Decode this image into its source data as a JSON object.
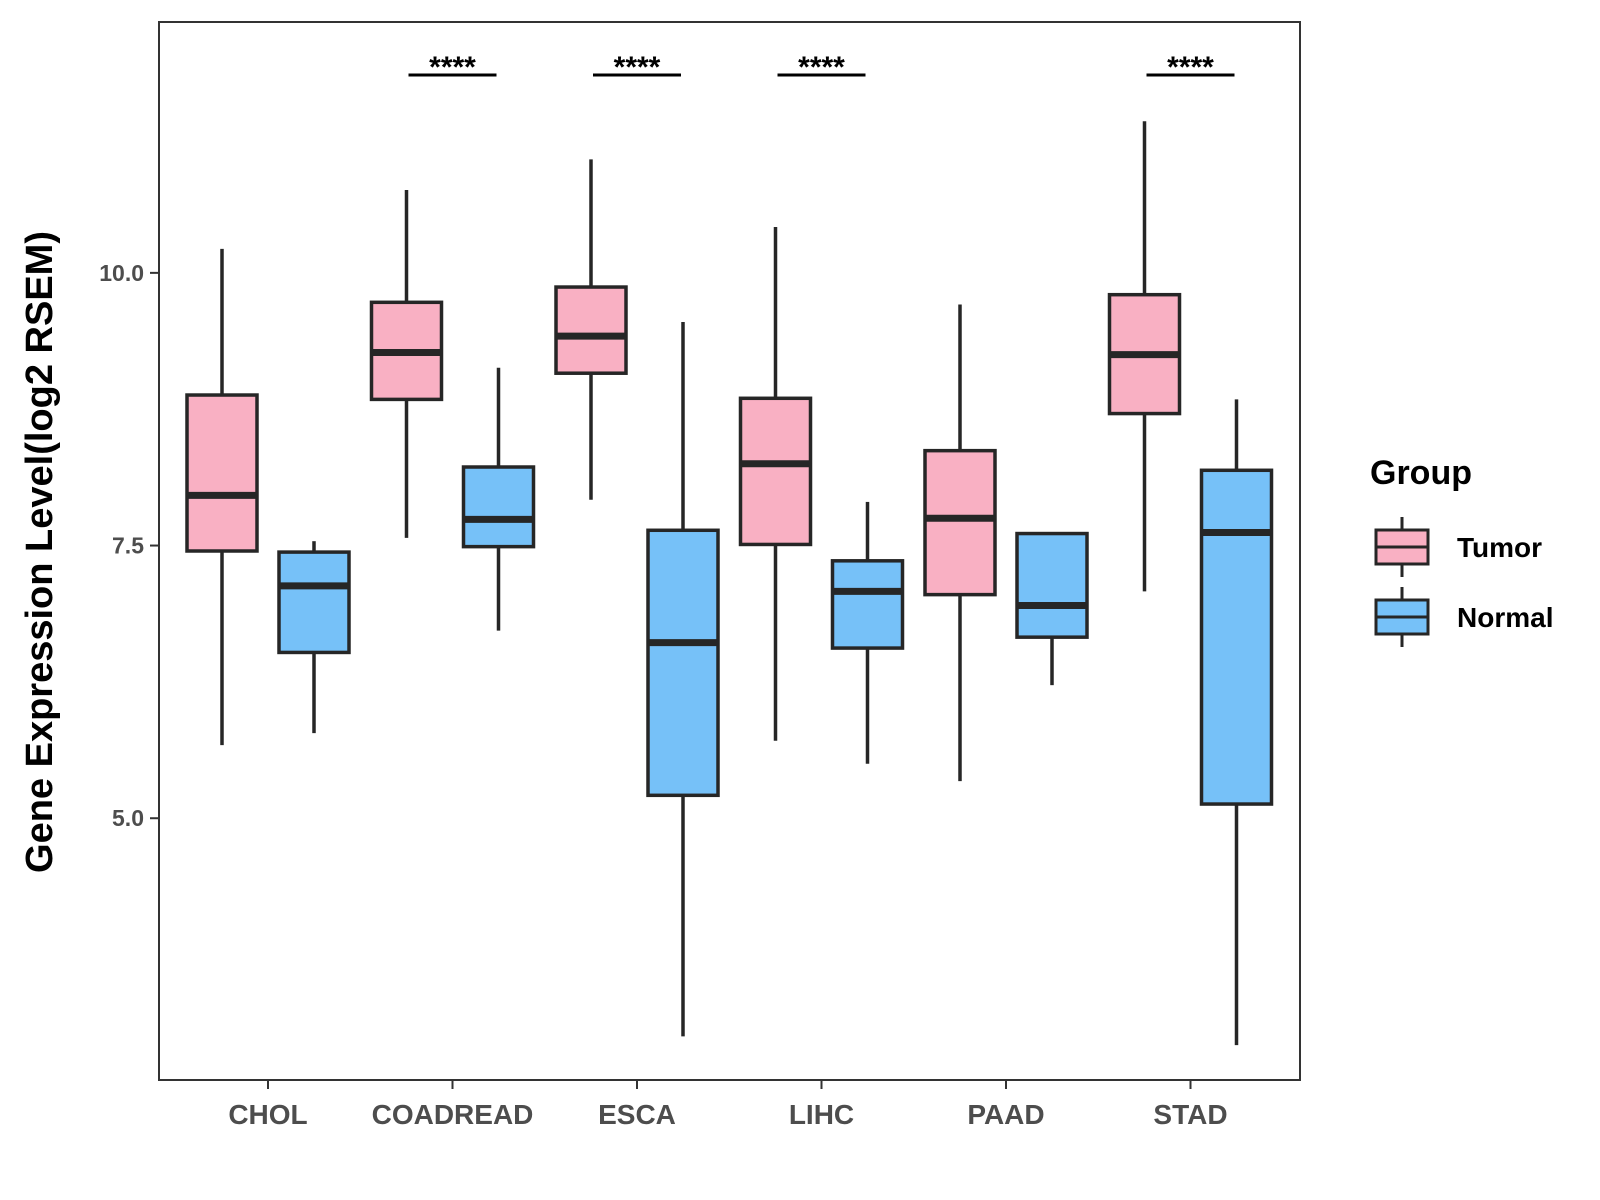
{
  "chart_data": {
    "type": "boxplot",
    "title": "",
    "xlabel": "",
    "ylabel": "Gene Expression Level(log2 RSEM)",
    "ylim": [
      2.6,
      12.3
    ],
    "yticks": [
      5.0,
      7.5,
      10.0
    ],
    "ytick_labels": [
      "5.0",
      "7.5",
      "10.0"
    ],
    "categories": [
      "CHOL",
      "COADREAD",
      "ESCA",
      "LIHC",
      "PAAD",
      "STAD"
    ],
    "series": [
      {
        "name": "Tumor",
        "color": "#F9B0C3",
        "boxes": [
          {
            "whisker_low": 5.67,
            "q1": 7.45,
            "median": 7.96,
            "q3": 8.88,
            "whisker_high": 10.22
          },
          {
            "whisker_low": 7.57,
            "q1": 8.84,
            "median": 9.27,
            "q3": 9.73,
            "whisker_high": 10.76
          },
          {
            "whisker_low": 7.92,
            "q1": 9.08,
            "median": 9.42,
            "q3": 9.87,
            "whisker_high": 11.04
          },
          {
            "whisker_low": 5.71,
            "q1": 7.51,
            "median": 8.25,
            "q3": 8.85,
            "whisker_high": 10.42
          },
          {
            "whisker_low": 5.34,
            "q1": 7.05,
            "median": 7.75,
            "q3": 8.37,
            "whisker_high": 9.71
          },
          {
            "whisker_low": 7.08,
            "q1": 8.71,
            "median": 9.25,
            "q3": 9.8,
            "whisker_high": 11.39
          }
        ]
      },
      {
        "name": "Normal",
        "color": "#76C1F8",
        "boxes": [
          {
            "whisker_low": 5.78,
            "q1": 6.52,
            "median": 7.13,
            "q3": 7.44,
            "whisker_high": 7.54
          },
          {
            "whisker_low": 6.72,
            "q1": 7.49,
            "median": 7.74,
            "q3": 8.22,
            "whisker_high": 9.13
          },
          {
            "whisker_low": 3.0,
            "q1": 5.21,
            "median": 6.61,
            "q3": 7.64,
            "whisker_high": 9.55
          },
          {
            "whisker_low": 5.5,
            "q1": 6.56,
            "median": 7.08,
            "q3": 7.36,
            "whisker_high": 7.9
          },
          {
            "whisker_low": 6.22,
            "q1": 6.66,
            "median": 6.95,
            "q3": 7.61,
            "whisker_high": 7.61
          },
          {
            "whisker_low": 2.92,
            "q1": 5.13,
            "median": 7.62,
            "q3": 8.19,
            "whisker_high": 8.84
          }
        ]
      }
    ],
    "significance": [
      {
        "category": "COADREAD",
        "label": "****"
      },
      {
        "category": "ESCA",
        "label": "****"
      },
      {
        "category": "LIHC",
        "label": "****"
      },
      {
        "category": "STAD",
        "label": "****"
      }
    ],
    "legend": {
      "title": "Group",
      "position": "right",
      "entries": [
        {
          "label": "Tumor",
          "color": "#F9B0C3"
        },
        {
          "label": "Normal",
          "color": "#76C1F8"
        }
      ]
    },
    "grid": false,
    "panel_border": true
  }
}
